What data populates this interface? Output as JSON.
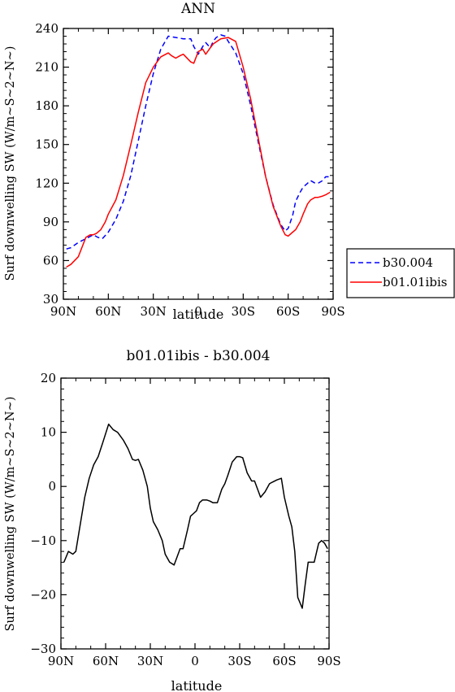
{
  "chart_data": [
    {
      "type": "line",
      "title": "ANN",
      "xlabel": "latitude",
      "ylabel": "Surf downwelling SW (W/m~S~2~N~)",
      "x_ticks": [
        "90N",
        "60N",
        "30N",
        "0",
        "30S",
        "60S",
        "90S"
      ],
      "y_ticks": [
        "30",
        "60",
        "90",
        "120",
        "150",
        "180",
        "210",
        "240"
      ],
      "xlim": [
        90,
        -90
      ],
      "ylim": [
        30,
        240
      ],
      "legend_position": "right",
      "series": [
        {
          "name": "b30.004",
          "color": "#0000ff",
          "dash": "dashed",
          "x": [
            88,
            85,
            80,
            75,
            70,
            67,
            64,
            60,
            55,
            50,
            45,
            40,
            35,
            30,
            25,
            20,
            15,
            10,
            5,
            3,
            0,
            -3,
            -5,
            -8,
            -10,
            -12,
            -15,
            -18,
            -20,
            -25,
            -30,
            -35,
            -40,
            -45,
            -50,
            -55,
            -58,
            -60,
            -63,
            -65,
            -68,
            -70,
            -72,
            -75,
            -78,
            -80,
            -83,
            -85,
            -88
          ],
          "y": [
            69,
            70,
            74,
            77,
            80,
            78,
            77,
            82,
            92,
            106,
            126,
            153,
            180,
            205,
            224,
            234,
            233,
            232,
            232,
            226,
            220,
            226,
            229,
            225,
            230,
            233,
            235,
            234,
            230,
            221,
            205,
            180,
            152,
            125,
            103,
            88,
            83,
            85,
            95,
            106,
            113,
            117,
            119,
            122,
            120,
            120,
            122,
            125,
            125
          ]
        },
        {
          "name": "b01.01ibis",
          "color": "#ff0000",
          "dash": "solid",
          "x": [
            88,
            85,
            80,
            75,
            72,
            70,
            68,
            65,
            62,
            60,
            55,
            50,
            45,
            40,
            35,
            30,
            25,
            20,
            18,
            15,
            12,
            10,
            5,
            3,
            0,
            -3,
            -5,
            -8,
            -10,
            -15,
            -20,
            -25,
            -30,
            -35,
            -40,
            -45,
            -50,
            -55,
            -58,
            -60,
            -63,
            -65,
            -68,
            -70,
            -73,
            -75,
            -78,
            -80,
            -83,
            -85,
            -88
          ],
          "y": [
            55,
            57,
            63,
            78,
            80,
            80,
            81,
            84,
            90,
            96,
            107,
            126,
            150,
            175,
            198,
            210,
            218,
            221,
            219,
            217,
            219,
            220,
            214,
            213,
            222,
            224,
            220,
            225,
            228,
            232,
            233,
            230,
            210,
            185,
            155,
            125,
            102,
            87,
            80,
            79,
            82,
            84,
            90,
            96,
            104,
            107,
            109,
            109,
            110,
            111,
            113
          ]
        }
      ]
    },
    {
      "type": "line",
      "title": "b01.01ibis - b30.004",
      "xlabel": "latitude",
      "ylabel": "Surf downwelling SW (W/m~S~2~N~)",
      "x_ticks": [
        "90N",
        "60N",
        "30N",
        "0",
        "30S",
        "60S",
        "90S"
      ],
      "y_ticks": [
        "20",
        "10",
        "0",
        "−10",
        "−20",
        "−30"
      ],
      "xlim": [
        90,
        -90
      ],
      "ylim": [
        -30,
        20
      ],
      "series": [
        {
          "color": "#000000",
          "dash": "solid",
          "x": [
            88,
            85,
            82,
            80,
            77,
            74,
            71,
            68,
            65,
            62,
            58,
            55,
            52,
            48,
            45,
            42,
            40,
            38,
            35,
            32,
            30,
            28,
            25,
            22,
            20,
            17,
            14,
            12,
            10,
            8,
            5,
            3,
            1,
            -1,
            -3,
            -5,
            -8,
            -10,
            -12,
            -15,
            -18,
            -20,
            -22,
            -25,
            -28,
            -30,
            -32,
            -35,
            -38,
            -40,
            -42,
            -44,
            -47,
            -50,
            -52,
            -55,
            -58,
            -60,
            -63,
            -65,
            -67,
            -69,
            -72,
            -74,
            -76,
            -78,
            -80,
            -83,
            -85,
            -87,
            -89
          ],
          "y": [
            -14,
            -12,
            -12.5,
            -12,
            -7,
            -2,
            1.5,
            4,
            5.5,
            8,
            11.5,
            10.5,
            10,
            8.5,
            7,
            5,
            4.8,
            5,
            3,
            0,
            -4,
            -6.5,
            -8,
            -10,
            -12.5,
            -14,
            -14.5,
            -13,
            -11.5,
            -11.5,
            -8,
            -5.5,
            -5,
            -4.5,
            -3,
            -2.5,
            -2.5,
            -2.7,
            -3,
            -3,
            -0.5,
            0.5,
            2,
            4.5,
            5.5,
            5.5,
            5.3,
            2.5,
            1,
            1,
            -0.5,
            -2,
            -1,
            0.5,
            0.8,
            1.2,
            1.5,
            -2,
            -5.5,
            -7.5,
            -12,
            -20.5,
            -22.5,
            -18,
            -14,
            -14,
            -14,
            -10.5,
            -10,
            -10.5,
            -11.5
          ]
        }
      ]
    }
  ]
}
